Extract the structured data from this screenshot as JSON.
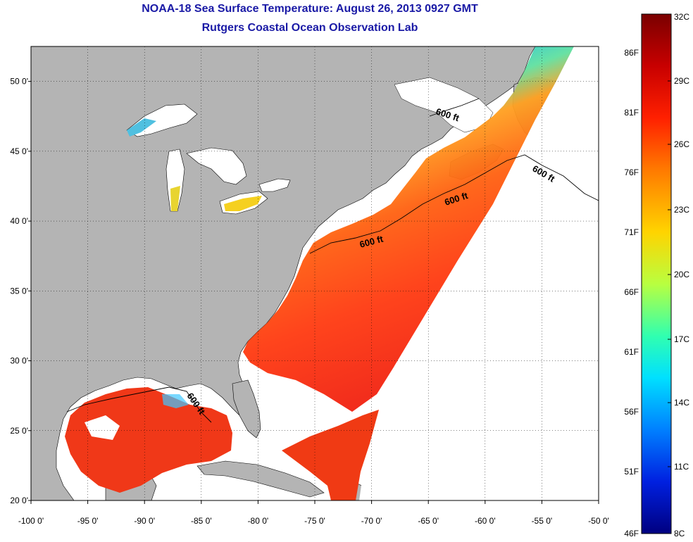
{
  "header": {
    "title": "NOAA-18 Sea Surface Temperature:  August 26, 2013 0927 GMT",
    "subtitle": "Rutgers Coastal Ocean Observation Lab"
  },
  "axes": {
    "x_ticks": [
      "-100 0'",
      "-95 0'",
      "-90 0'",
      "-85 0'",
      "-80 0'",
      "-75 0'",
      "-70 0'",
      "-65 0'",
      "-60 0'",
      "-55 0'",
      "-50 0'"
    ],
    "y_ticks": [
      "50 0'",
      "45 0'",
      "40 0'",
      "35 0'",
      "30 0'",
      "25 0'",
      "20 0'"
    ],
    "lon_range": [
      -100,
      -50
    ],
    "lat_range": [
      20,
      52.5
    ]
  },
  "contour_labels": [
    "600 ft",
    "600 ft",
    "600 ft",
    "600 ft",
    "600 ft"
  ],
  "colorbar": {
    "fahrenheit": [
      "86F",
      "81F",
      "76F",
      "71F",
      "66F",
      "61F",
      "56F",
      "51F",
      "46F"
    ],
    "celsius": [
      "32C",
      "29C",
      "26C",
      "23C",
      "20C",
      "17C",
      "14C",
      "11C",
      "8C"
    ],
    "colors": [
      "#7a0000",
      "#e00000",
      "#ff6a00",
      "#ffd400",
      "#c8ff30",
      "#40ffa0",
      "#00e8ff",
      "#0090ff",
      "#0020e0",
      "#000080"
    ]
  },
  "colors": {
    "land": "#b4b4b4",
    "ocean_nodata": "#ffffff",
    "title": "#1a1aa6"
  }
}
